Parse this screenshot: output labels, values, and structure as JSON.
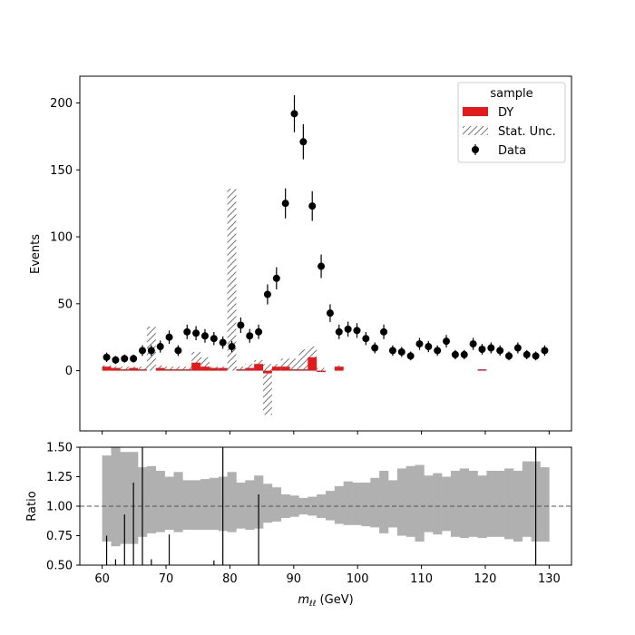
{
  "chart_data": [
    {
      "panel": "main",
      "type": "histogram",
      "ylabel": "Events",
      "xlim": [
        56.5,
        133.5
      ],
      "ylim": [
        -45,
        220
      ],
      "yticks": [
        0,
        50,
        100,
        150,
        200
      ],
      "bin_edges": [
        60,
        61.4,
        62.8,
        64.2,
        65.6,
        67,
        68.4,
        69.8,
        71.2,
        72.6,
        74,
        75.4,
        76.8,
        78.2,
        79.6,
        81,
        82.4,
        83.8,
        85.2,
        86.6,
        88,
        89.4,
        90.8,
        92.2,
        93.6,
        95,
        96.4,
        97.8,
        99.2,
        100.6,
        102,
        103.4,
        104.8,
        106.2,
        107.6,
        109,
        110.4,
        111.8,
        113.2,
        114.6,
        116,
        117.4,
        118.8,
        120.2,
        121.6,
        123,
        124.4,
        125.8,
        127.2,
        128.6,
        130
      ],
      "dy": [
        3,
        2,
        1,
        2,
        1,
        0,
        2,
        1,
        1,
        1,
        6,
        3,
        2,
        2,
        0,
        1,
        2,
        5,
        -2,
        3,
        3,
        1,
        1,
        10,
        -1,
        0,
        3,
        0,
        0,
        0,
        0,
        0,
        0,
        0,
        0,
        0,
        0,
        0,
        0,
        0,
        0,
        0,
        1,
        0,
        0,
        0,
        0,
        0,
        0,
        0
      ],
      "stat_unc": [
        [
          0,
          4
        ],
        [
          0,
          3
        ],
        [
          0,
          3
        ],
        [
          0,
          3
        ],
        [
          0,
          3
        ],
        [
          0,
          33
        ],
        [
          0,
          4
        ],
        [
          0,
          3
        ],
        [
          0,
          3
        ],
        [
          0,
          3
        ],
        [
          0,
          14
        ],
        [
          0,
          10
        ],
        [
          0,
          3
        ],
        [
          0,
          3
        ],
        [
          0,
          136
        ],
        [
          0,
          3
        ],
        [
          0,
          5
        ],
        [
          0,
          8
        ],
        [
          -33,
          5
        ],
        [
          0,
          5
        ],
        [
          0,
          9
        ],
        [
          0,
          9
        ],
        [
          0,
          16
        ],
        [
          0,
          18
        ],
        [
          0,
          2
        ],
        [
          0,
          0
        ],
        [
          0,
          4
        ],
        [
          0,
          0
        ],
        [
          0,
          0
        ],
        [
          0,
          0
        ],
        [
          0,
          0
        ],
        [
          0,
          0
        ],
        [
          0,
          0
        ],
        [
          0,
          0
        ],
        [
          0,
          0
        ],
        [
          0,
          0
        ],
        [
          0,
          0
        ],
        [
          0,
          0
        ],
        [
          0,
          0
        ],
        [
          0,
          0
        ],
        [
          0,
          0
        ],
        [
          0,
          0
        ],
        [
          0,
          0
        ],
        [
          0,
          0
        ],
        [
          0,
          0
        ],
        [
          0,
          0
        ],
        [
          0,
          0
        ],
        [
          0,
          0
        ],
        [
          0,
          0
        ],
        [
          0,
          0
        ]
      ],
      "data": {
        "x": [
          60.7,
          62.1,
          63.5,
          64.9,
          66.3,
          67.7,
          69.1,
          70.5,
          71.9,
          73.3,
          74.7,
          76.1,
          77.5,
          78.9,
          80.3,
          81.7,
          83.1,
          84.5,
          85.9,
          87.3,
          88.7,
          90.1,
          91.5,
          92.9,
          94.3,
          95.7,
          97.1,
          98.5,
          99.9,
          101.3,
          102.7,
          104.1,
          105.5,
          106.9,
          108.3,
          109.7,
          111.1,
          112.5,
          113.9,
          115.3,
          116.7,
          118.1,
          119.5,
          120.9,
          122.3,
          123.7,
          125.1,
          126.5,
          127.9,
          129.3
        ],
        "y": [
          10,
          8,
          9,
          9,
          15,
          15,
          18,
          25,
          15,
          29,
          28,
          26,
          24,
          21,
          18,
          34,
          26,
          29,
          57,
          69,
          125,
          192,
          171,
          123,
          78,
          43,
          29,
          31,
          30,
          24,
          17,
          29,
          15,
          14,
          11,
          20,
          18,
          15,
          22,
          12,
          12,
          20,
          16,
          17,
          15,
          11,
          17,
          12,
          11,
          15
        ],
        "err": [
          3.5,
          3,
          3,
          3,
          4,
          4,
          4.5,
          5,
          4,
          5.4,
          5.3,
          5.1,
          4.9,
          4.6,
          4.2,
          5.8,
          5.1,
          5.4,
          7.5,
          8.3,
          11.2,
          13.9,
          13.1,
          11.1,
          8.8,
          6.6,
          5.4,
          5.6,
          5.5,
          4.9,
          4.1,
          5.4,
          3.9,
          3.7,
          3.3,
          4.5,
          4.2,
          3.9,
          4.7,
          3.5,
          3.5,
          4.5,
          4,
          4.1,
          3.9,
          3.3,
          4.1,
          3.5,
          3.3,
          3.9
        ]
      },
      "legend": {
        "title": "sample",
        "entries": [
          "DY",
          "Stat. Unc.",
          "Data"
        ],
        "placement": "upper-right"
      }
    },
    {
      "panel": "ratio",
      "type": "ratio",
      "ylabel": "Ratio",
      "xlabel": "m_ℓℓ (GeV)",
      "xlim": [
        56.5,
        133.5
      ],
      "ylim": [
        0.5,
        1.5
      ],
      "xticks": [
        60,
        70,
        80,
        90,
        100,
        110,
        120,
        130
      ],
      "yticks": [
        0.5,
        0.75,
        1.0,
        1.25,
        1.5
      ],
      "band": [
        [
          0.7,
          1.43
        ],
        [
          0.66,
          1.5
        ],
        [
          0.68,
          1.46
        ],
        [
          0.68,
          1.46
        ],
        [
          0.74,
          1.33
        ],
        [
          0.77,
          1.34
        ],
        [
          0.78,
          1.3
        ],
        [
          0.8,
          1.25
        ],
        [
          0.78,
          1.29
        ],
        [
          0.8,
          1.22
        ],
        [
          0.8,
          1.22
        ],
        [
          0.8,
          1.23
        ],
        [
          0.8,
          1.24
        ],
        [
          0.79,
          1.25
        ],
        [
          0.78,
          1.29
        ],
        [
          0.81,
          1.2
        ],
        [
          0.8,
          1.22
        ],
        [
          0.81,
          1.26
        ],
        [
          0.86,
          1.19
        ],
        [
          0.87,
          1.16
        ],
        [
          0.9,
          1.1
        ],
        [
          0.91,
          1.09
        ],
        [
          0.93,
          1.07
        ],
        [
          0.92,
          1.08
        ],
        [
          0.9,
          1.1
        ],
        [
          0.88,
          1.13
        ],
        [
          0.85,
          1.17
        ],
        [
          0.84,
          1.21
        ],
        [
          0.84,
          1.2
        ],
        [
          0.83,
          1.2
        ],
        [
          0.82,
          1.24
        ],
        [
          0.77,
          1.3
        ],
        [
          0.82,
          1.22
        ],
        [
          0.75,
          1.32
        ],
        [
          0.74,
          1.34
        ],
        [
          0.7,
          1.35
        ],
        [
          0.78,
          1.26
        ],
        [
          0.76,
          1.28
        ],
        [
          0.79,
          1.25
        ],
        [
          0.74,
          1.3
        ],
        [
          0.73,
          1.32
        ],
        [
          0.74,
          1.3
        ],
        [
          0.73,
          1.26
        ],
        [
          0.74,
          1.3
        ],
        [
          0.74,
          1.3
        ],
        [
          0.72,
          1.32
        ],
        [
          0.7,
          1.3
        ],
        [
          0.74,
          1.38
        ],
        [
          0.7,
          1.38
        ],
        [
          0.7,
          1.33
        ]
      ],
      "ratio_bars": [
        {
          "x": 60.7,
          "lo": 0.5,
          "hi": 0.75
        },
        {
          "x": 62.1,
          "lo": 0.5,
          "hi": 0.55
        },
        {
          "x": 63.5,
          "lo": 0.5,
          "hi": 0.93
        },
        {
          "x": 64.9,
          "lo": 0.5,
          "hi": 1.2
        },
        {
          "x": 66.3,
          "lo": 0.5,
          "hi": 1.5
        },
        {
          "x": 67.7,
          "lo": 0.5,
          "hi": 0.55
        },
        {
          "x": 70.5,
          "lo": 0.5,
          "hi": 0.76
        },
        {
          "x": 77.5,
          "lo": 0.5,
          "hi": 0.54
        },
        {
          "x": 78.9,
          "lo": 0.5,
          "hi": 1.5
        },
        {
          "x": 84.5,
          "lo": 0.5,
          "hi": 1.1
        },
        {
          "x": 127.9,
          "lo": 0.5,
          "hi": 1.5
        }
      ]
    }
  ]
}
